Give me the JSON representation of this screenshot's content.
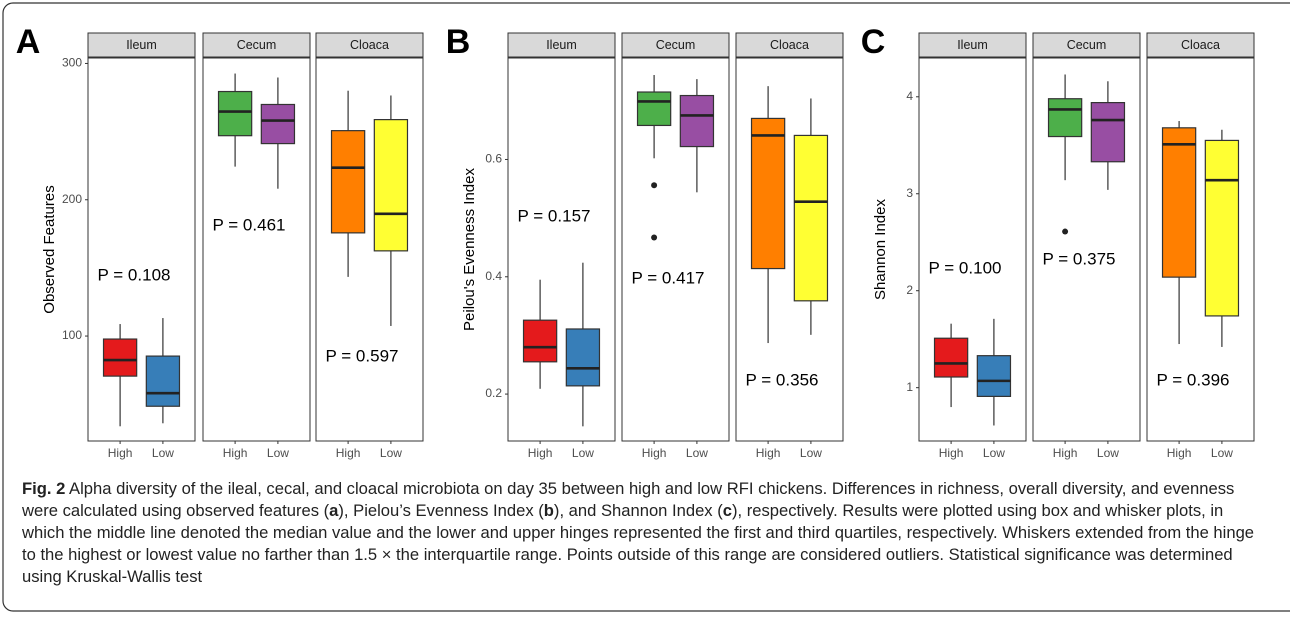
{
  "chart_data": [
    {
      "type": "box",
      "panel": "A",
      "ylabel": "Observed Features",
      "ylim": [
        23,
        304
      ],
      "yticks": [
        100,
        200,
        300
      ],
      "categories": [
        "High",
        "Low"
      ],
      "facets": [
        {
          "name": "Ileum",
          "colors": [
            "#e41a1c",
            "#377eb8"
          ],
          "annotation": "P = 0.108",
          "boxes": [
            {
              "min": 33.8,
              "q1": 70.6,
              "median": 82.4,
              "q3": 97.8,
              "max": 108.8
            },
            {
              "min": 36,
              "q1": 48.5,
              "median": 58.1,
              "q3": 85.3,
              "max": 113.2
            }
          ]
        },
        {
          "name": "Cecum",
          "colors": [
            "#4daf4a",
            "#984ea3"
          ],
          "annotation": "P = 0.461",
          "boxes": [
            {
              "min": 224.3,
              "q1": 247,
              "median": 264.7,
              "q3": 279.4,
              "max": 292.6
            },
            {
              "min": 208.1,
              "q1": 241.2,
              "median": 258.1,
              "q3": 269.9,
              "max": 289.7
            }
          ]
        },
        {
          "name": "Cloaca",
          "colors": [
            "#ff7f00",
            "#ffff33"
          ],
          "annotation": "P = 0.597",
          "boxes": [
            {
              "min": 143.4,
              "q1": 175.7,
              "median": 223.5,
              "q3": 250.7,
              "max": 280
            },
            {
              "min": 107.4,
              "q1": 162.5,
              "median": 189.7,
              "q3": 258.8,
              "max": 276.5
            }
          ]
        }
      ]
    },
    {
      "type": "box",
      "panel": "B",
      "ylabel": "Peilou's Evenness Index",
      "ylim": [
        0.12,
        0.773
      ],
      "yticks": [
        0.2,
        0.4,
        0.6
      ],
      "categories": [
        "High",
        "Low"
      ],
      "facets": [
        {
          "name": "Ileum",
          "colors": [
            "#e41a1c",
            "#377eb8"
          ],
          "annotation": "P = 0.157",
          "boxes": [
            {
              "min": 0.209,
              "q1": 0.255,
              "median": 0.28,
              "q3": 0.326,
              "max": 0.395
            },
            {
              "min": 0.145,
              "q1": 0.214,
              "median": 0.244,
              "q3": 0.311,
              "max": 0.424
            }
          ]
        },
        {
          "name": "Cecum",
          "colors": [
            "#4daf4a",
            "#984ea3"
          ],
          "annotation": "P = 0.417",
          "boxes": [
            {
              "min": 0.602,
              "q1": 0.658,
              "median": 0.699,
              "q3": 0.715,
              "max": 0.744,
              "outliers": [
                0.556,
                0.467
              ]
            },
            {
              "min": 0.544,
              "q1": 0.622,
              "median": 0.675,
              "q3": 0.709,
              "max": 0.737
            }
          ]
        },
        {
          "name": "Cloaca",
          "colors": [
            "#ff7f00",
            "#ffff33"
          ],
          "annotation": "P = 0.356",
          "boxes": [
            {
              "min": 0.287,
              "q1": 0.414,
              "median": 0.641,
              "q3": 0.67,
              "max": 0.725
            },
            {
              "min": 0.301,
              "q1": 0.359,
              "median": 0.528,
              "q3": 0.641,
              "max": 0.704
            }
          ]
        }
      ]
    },
    {
      "type": "box",
      "panel": "C",
      "ylabel": "Shannon Index",
      "ylim": [
        0.45,
        4.4
      ],
      "yticks": [
        1,
        2,
        3,
        4
      ],
      "categories": [
        "High",
        "Low"
      ],
      "facets": [
        {
          "name": "Ileum",
          "colors": [
            "#e41a1c",
            "#377eb8"
          ],
          "annotation": "P = 0.100",
          "boxes": [
            {
              "min": 0.8,
              "q1": 1.11,
              "median": 1.25,
              "q3": 1.51,
              "max": 1.66
            },
            {
              "min": 0.61,
              "q1": 0.91,
              "median": 1.07,
              "q3": 1.33,
              "max": 1.71
            }
          ]
        },
        {
          "name": "Cecum",
          "colors": [
            "#4daf4a",
            "#984ea3"
          ],
          "annotation": "P = 0.375",
          "boxes": [
            {
              "min": 3.14,
              "q1": 3.59,
              "median": 3.87,
              "q3": 3.98,
              "max": 4.23,
              "outliers": [
                2.61
              ]
            },
            {
              "min": 3.04,
              "q1": 3.33,
              "median": 3.76,
              "q3": 3.94,
              "max": 4.16
            }
          ]
        },
        {
          "name": "Cloaca",
          "colors": [
            "#ff7f00",
            "#ffff33"
          ],
          "annotation": "P = 0.396",
          "boxes": [
            {
              "min": 1.45,
              "q1": 2.14,
              "median": 3.51,
              "q3": 3.68,
              "max": 3.75
            },
            {
              "min": 1.42,
              "q1": 1.74,
              "median": 3.14,
              "q3": 3.55,
              "max": 3.66
            }
          ]
        }
      ]
    }
  ],
  "caption": {
    "label": "Fig. 2",
    "parts": [
      "Alpha diversity of the ileal, cecal, and cloacal microbiota on day 35 between high and low RFI chickens. Differences in richness, overall diversity, and evenness were calculated using observed features (",
      "a",
      "), Pielou’s Evenness Index (",
      "b",
      "), and Shannon Index (",
      "c",
      "), respectively. Results were plotted using box and whisker plots, in which the middle line denoted the median value and the lower and upper hinges represented the first and third quartiles, respectively. Whiskers extended from the hinge to the highest or lowest value no farther than 1.5 × the interquartile range. Points outside of this range are considered outliers. Statistical significance was determined using Kruskal-Wallis test"
    ]
  }
}
